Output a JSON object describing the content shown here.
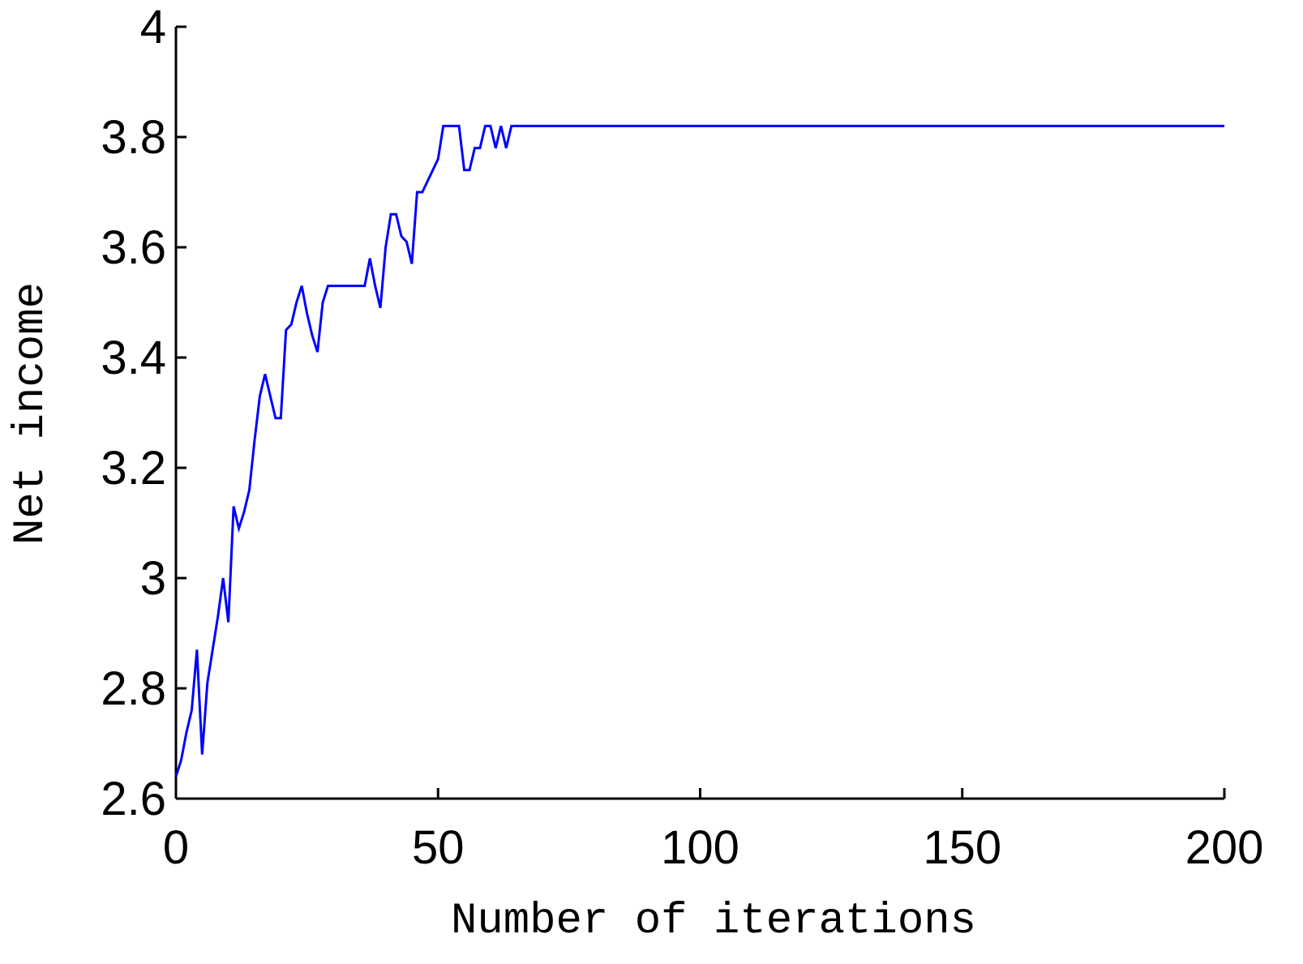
{
  "chart_data": {
    "type": "line",
    "x_label": "Number of iterations",
    "y_label": "Net income",
    "x": [
      0,
      1,
      2,
      3,
      4,
      5,
      6,
      7,
      8,
      9,
      10,
      11,
      12,
      13,
      14,
      15,
      16,
      17,
      18,
      19,
      20,
      21,
      22,
      23,
      24,
      25,
      26,
      27,
      28,
      29,
      30,
      31,
      32,
      33,
      34,
      35,
      36,
      37,
      38,
      39,
      40,
      41,
      42,
      43,
      44,
      45,
      46,
      47,
      48,
      49,
      50,
      51,
      52,
      53,
      54,
      55,
      56,
      57,
      58,
      59,
      60,
      61,
      62,
      63,
      64,
      65,
      200
    ],
    "series": [
      {
        "name": "Net income",
        "color": "#0000ff",
        "values": [
          2.64,
          2.67,
          2.72,
          2.76,
          2.87,
          2.68,
          2.81,
          2.87,
          2.93,
          3.0,
          2.92,
          3.13,
          3.09,
          3.12,
          3.16,
          3.25,
          3.33,
          3.37,
          3.33,
          3.29,
          3.29,
          3.45,
          3.46,
          3.5,
          3.53,
          3.48,
          3.44,
          3.41,
          3.5,
          3.53,
          3.53,
          3.53,
          3.53,
          3.53,
          3.53,
          3.53,
          3.53,
          3.58,
          3.53,
          3.49,
          3.6,
          3.66,
          3.66,
          3.62,
          3.61,
          3.57,
          3.7,
          3.7,
          3.72,
          3.74,
          3.76,
          3.82,
          3.82,
          3.82,
          3.82,
          3.74,
          3.74,
          3.78,
          3.78,
          3.82,
          3.82,
          3.78,
          3.82,
          3.78,
          3.82,
          3.82,
          3.82
        ]
      }
    ],
    "xlim": [
      0,
      200
    ],
    "xticks": [
      0,
      50,
      100,
      150,
      200
    ],
    "ylim": [
      2.6,
      4
    ],
    "yticks": [
      2.6,
      2.8,
      3,
      3.2,
      3.4,
      3.6,
      3.8,
      4
    ]
  }
}
